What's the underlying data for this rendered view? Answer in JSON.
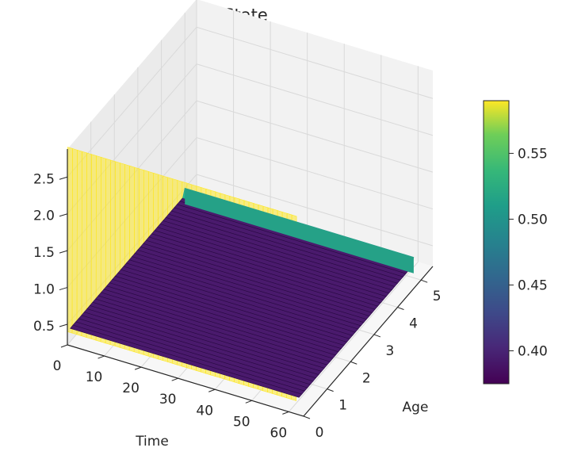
{
  "chart_data": {
    "type": "surface3d",
    "title": "State",
    "xlabel": "Time",
    "ylabel": "Age",
    "zlabel": "",
    "x_ticks": [
      0,
      10,
      20,
      30,
      40,
      50,
      60
    ],
    "y_ticks": [
      0,
      1,
      2,
      3,
      4,
      5
    ],
    "z_ticks": [
      0.5,
      1.0,
      1.5,
      2.0,
      2.5
    ],
    "x_tick_labels": [
      "0",
      "10",
      "20",
      "30",
      "40",
      "50",
      "60"
    ],
    "y_tick_labels": [
      "0",
      "1",
      "2",
      "3",
      "4",
      "5"
    ],
    "z_tick_labels": [
      "0.5",
      "1.0",
      "1.5",
      "2.0",
      "2.5"
    ],
    "xlim": [
      0,
      64
    ],
    "ylim": [
      0,
      5.5
    ],
    "zlim": [
      0.22,
      2.88
    ],
    "grid": true,
    "surface": {
      "time_range": [
        0,
        62
      ],
      "age_range": [
        0,
        5
      ],
      "state_at_age0": 2.9,
      "state_at_age0_to_5": 0.4,
      "state_at_age5": 0.5
    },
    "colorbar": {
      "colormap": "viridis",
      "min": 0.375,
      "max": 0.59,
      "ticks": [
        0.4,
        0.45,
        0.5,
        0.55
      ],
      "tick_labels": [
        "0.40",
        "0.45",
        "0.50",
        "0.55"
      ]
    },
    "colors": {
      "high": "#fde725",
      "low": "#440154",
      "mid": "#2a9d8f",
      "surface_main": "#4a1a6d",
      "surface_edge": "#2ab58a",
      "grid": "#d9d9d9",
      "pane": "#f2f2f2"
    }
  }
}
